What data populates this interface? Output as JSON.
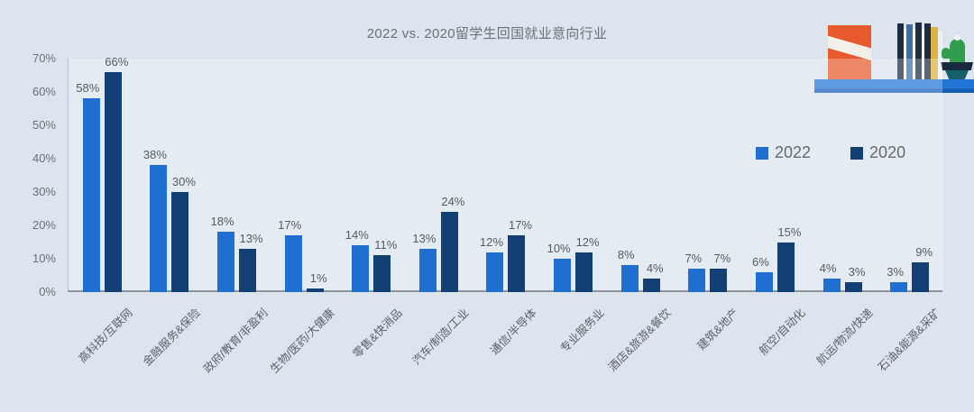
{
  "title": "2022 vs. 2020留学生回国就业意向行业",
  "legend": {
    "items": [
      {
        "label": "2022",
        "color": "#1e6fd0"
      },
      {
        "label": "2020",
        "color": "#123f74"
      }
    ]
  },
  "chart_data": {
    "type": "bar",
    "title": "2022 vs. 2020留学生回国就业意向行业",
    "categories": [
      "高科技/互联网",
      "金融服务&保险",
      "政府/教育/非盈利",
      "生物/医药/大健康",
      "零售&快消品",
      "汽车/制造/工业",
      "通信/半导体",
      "专业服务业",
      "酒店&旅游&餐饮",
      "建筑&地产",
      "航空/自动化",
      "航运/物流/快递",
      "石油&能源&采矿"
    ],
    "series": [
      {
        "name": "2022",
        "color": "#1e6fd0",
        "values": [
          58,
          38,
          18,
          17,
          14,
          13,
          12,
          10,
          8,
          7,
          6,
          4,
          3
        ]
      },
      {
        "name": "2020",
        "color": "#123f74",
        "values": [
          66,
          30,
          13,
          1,
          11,
          24,
          17,
          12,
          4,
          7,
          15,
          3,
          9
        ]
      }
    ],
    "value_suffix": "%",
    "y_ticks": [
      "0%",
      "10%",
      "20%",
      "30%",
      "40%",
      "50%",
      "60%",
      "70%"
    ],
    "ylim": [
      0,
      70
    ],
    "grid": false,
    "legend_position": "middle-right",
    "category_label_rotation_deg": -45
  },
  "illustration": {
    "name": "bookshelf-with-cactus",
    "shelf_color": "#1f74d6",
    "orange_book_color": "#e65a2d",
    "spine_colors": [
      "#1d2c3f",
      "#ffffff",
      "#3a6fa8",
      "#ffffff",
      "#1d2c3f",
      "#ffffff",
      "#1d2c3f",
      "#ddb245",
      "#eef1f4"
    ],
    "cactus_color": "#2f9e4d",
    "pot_colors": [
      "#17293d",
      "#155f6b"
    ]
  },
  "colors": {
    "background": "#dce4ee",
    "axis_line": "#8d939a",
    "y_axis_line": "#b6bfca",
    "text_gray": "#6a7076"
  }
}
